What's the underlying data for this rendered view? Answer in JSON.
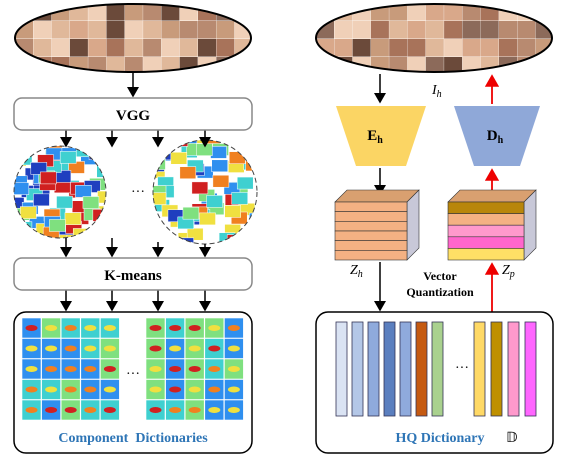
{
  "left": {
    "vgg": "VGG",
    "ellipsis_maps": "···",
    "kmeans": "K-means",
    "ellipsis_dict": "···",
    "dictionary": "Component  Dictionaries"
  },
  "right": {
    "image_label": {
      "base": "I",
      "sub": "h"
    },
    "encoder": {
      "base": "E",
      "sub": "h"
    },
    "decoder": {
      "base": "D",
      "sub": "h"
    },
    "latent_h": {
      "base": "Z",
      "sub": "h"
    },
    "latent_p": {
      "base": "Z",
      "sub": "p"
    },
    "quantization": [
      "Vector",
      "Quantization"
    ],
    "ellipsis_dict": "···",
    "dictionary": "HQ Dictionary",
    "dictionary_symbol": "𝔻"
  }
}
